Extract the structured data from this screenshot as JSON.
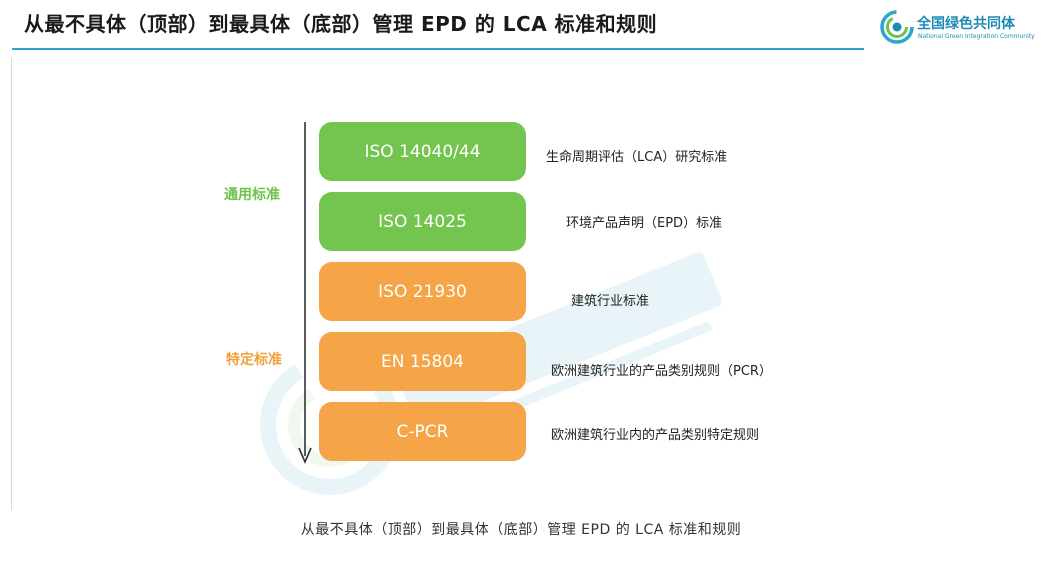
{
  "title": "从最不具体（顶部）到最具体（底部）管理 EPD 的 LCA 标准和规则",
  "logo": {
    "name": "全国绿色共同体",
    "subtitle": "National Green Integration Community"
  },
  "groups": [
    {
      "label": "通用标准",
      "color": "#6cc24a"
    },
    {
      "label": "特定标准",
      "color": "#f0a13c"
    }
  ],
  "standards": [
    {
      "label": "ISO 14040/44",
      "description": "生命周期评估（LCA）研究标准",
      "group": "通用标准"
    },
    {
      "label": "ISO 14025",
      "description": "环境产品声明（EPD）标准",
      "group": "通用标准"
    },
    {
      "label": "ISO  21930",
      "description": "建筑行业标准",
      "group": "特定标准"
    },
    {
      "label": "EN 15804",
      "description": "欧洲建筑行业的产品类别规则（PCR）",
      "group": "特定标准"
    },
    {
      "label": "C-PCR",
      "description": "欧洲建筑行业内的产品类别特定规则",
      "group": "特定标准"
    }
  ],
  "caption": "从最不具体（顶部）到最具体（底部）管理 EPD 的 LCA 标准和规则"
}
